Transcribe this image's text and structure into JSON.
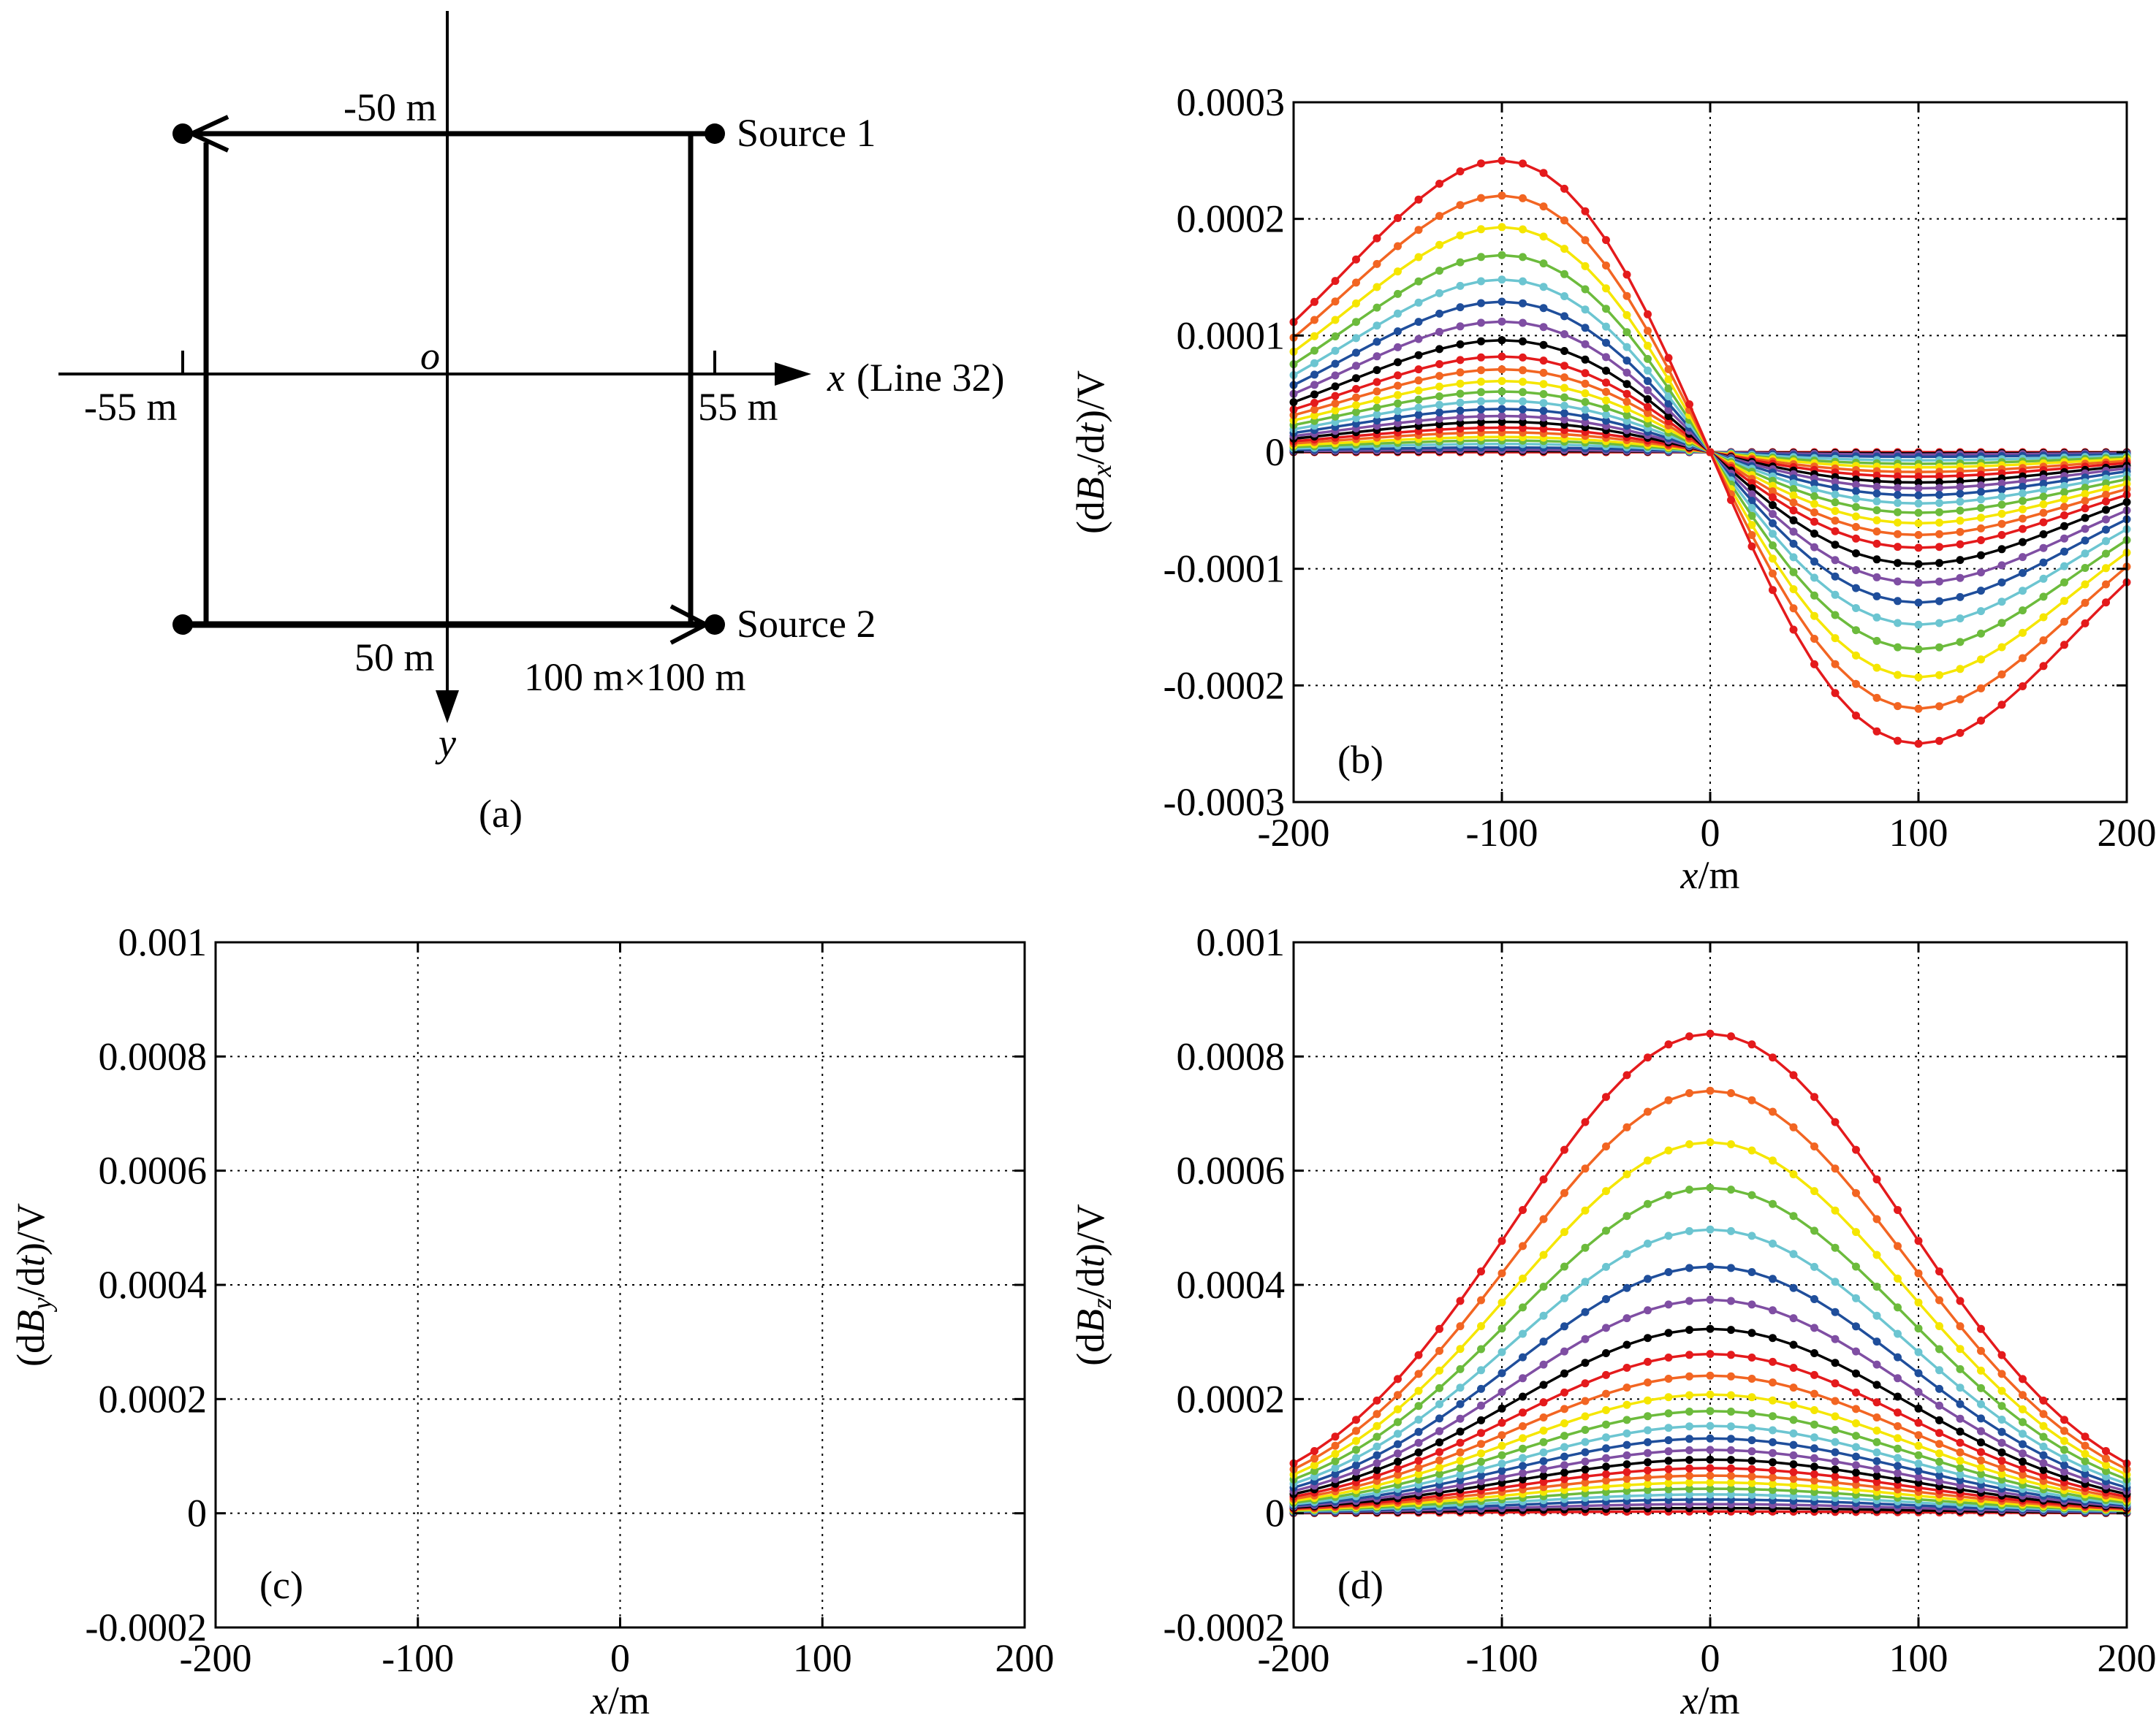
{
  "figure_label_a": "(a)",
  "schematic": {
    "top_label": "-50 m",
    "bottom_label": "50 m",
    "left_label": "-55 m",
    "right_label": "55 m",
    "origin_label": "o",
    "x_axis_label": "x",
    "line_label": "(Line 32)",
    "y_axis_label": "y",
    "source1": "Source 1",
    "source2": "Source 2",
    "loop_size": "100 m×100 m"
  },
  "chart_data": [
    {
      "id": "b",
      "type": "line",
      "panel_label": "(b)",
      "component": "x",
      "ylabel_prefix": "(d",
      "ylabel_sym": "B",
      "ylabel_sub": "x",
      "ylabel_mid": "/d",
      "ylabel_t": "t",
      "ylabel_suffix": ")/V",
      "xlabel_var": "x",
      "xlabel_unit": "/m",
      "xlim": [
        -200,
        200
      ],
      "ylim": [
        -0.0003,
        0.0003
      ],
      "xticks": [
        -200,
        -100,
        0,
        100,
        200
      ],
      "xtick_labels": [
        "-200",
        "-100",
        "0",
        "100",
        "200"
      ],
      "yticks": [
        0.0003,
        0.0002,
        0.0001,
        0,
        -0.0001,
        -0.0002,
        -0.0003
      ],
      "ytick_labels": [
        "0.0003",
        "0.0002",
        "0.0001",
        "0",
        "-0.0001",
        "-0.0002",
        "-0.0003"
      ],
      "grid": true,
      "curve_model": "antisymmetric",
      "peak_values": [
        0.00025,
        0.00022,
        0.000193,
        0.000169,
        0.000148,
        0.000129,
        0.000112,
        9.6e-05,
        8.2e-05,
        7.1e-05,
        6.1e-05,
        5.2e-05,
        4.4e-05,
        3.7e-05,
        3.1e-05,
        2.6e-05,
        2.1e-05,
        1.7e-05,
        1.3e-05,
        1e-05,
        7e-06,
        4e-06,
        2e-06,
        1e-06,
        0
      ]
    },
    {
      "id": "c",
      "type": "line",
      "panel_label": "(c)",
      "component": "y",
      "ylabel_prefix": "(d",
      "ylabel_sym": "B",
      "ylabel_sub": "y",
      "ylabel_mid": "/d",
      "ylabel_t": "t",
      "ylabel_suffix": ")/V",
      "xlabel_var": "x",
      "xlabel_unit": "/m",
      "xlim": [
        -200,
        200
      ],
      "ylim": [
        -0.0002,
        0.001
      ],
      "xticks": [
        -200,
        -100,
        0,
        100,
        200
      ],
      "xtick_labels": [
        "-200",
        "-100",
        "0",
        "100",
        "200"
      ],
      "yticks": [
        0.001,
        0.0008,
        0.0006,
        0.0004,
        0.0002,
        0,
        -0.0002
      ],
      "ytick_labels": [
        "0.001",
        "0.0008",
        "0.0006",
        "0.0004",
        "0.0002",
        "0",
        "-0.0002"
      ],
      "grid": true,
      "curve_model": "none",
      "peak_values": []
    },
    {
      "id": "d",
      "type": "line",
      "panel_label": "(d)",
      "component": "z",
      "ylabel_prefix": "(d",
      "ylabel_sym": "B",
      "ylabel_sub": "z",
      "ylabel_mid": "/d",
      "ylabel_t": "t",
      "ylabel_suffix": ")/V",
      "xlabel_var": "x",
      "xlabel_unit": "/m",
      "xlim": [
        -200,
        200
      ],
      "ylim": [
        -0.0002,
        0.001
      ],
      "xticks": [
        -200,
        -100,
        0,
        100,
        200
      ],
      "xtick_labels": [
        "-200",
        "-100",
        "0",
        "100",
        "200"
      ],
      "yticks": [
        0.001,
        0.0008,
        0.0006,
        0.0004,
        0.0002,
        0,
        -0.0002
      ],
      "ytick_labels": [
        "0.001",
        "0.0008",
        "0.0006",
        "0.0004",
        "0.0002",
        "0",
        "-0.0002"
      ],
      "grid": true,
      "curve_model": "symmetric",
      "peak_values": [
        0.00084,
        0.00074,
        0.00065,
        0.00057,
        0.000497,
        0.000432,
        0.000374,
        0.000323,
        0.000279,
        0.000241,
        0.000208,
        0.000179,
        0.000153,
        0.000131,
        0.000111,
        9.4e-05,
        7.9e-05,
        6.6e-05,
        5.4e-05,
        4.3e-05,
        3.3e-05,
        2.4e-05,
        1.6e-05,
        9e-06,
        3e-06
      ]
    }
  ],
  "series_colors": [
    "#e41a1c",
    "#f26522",
    "#f5e600",
    "#6cbb3c",
    "#6cc5d1",
    "#1f4e9b",
    "#7f4ea3",
    "#000000"
  ]
}
